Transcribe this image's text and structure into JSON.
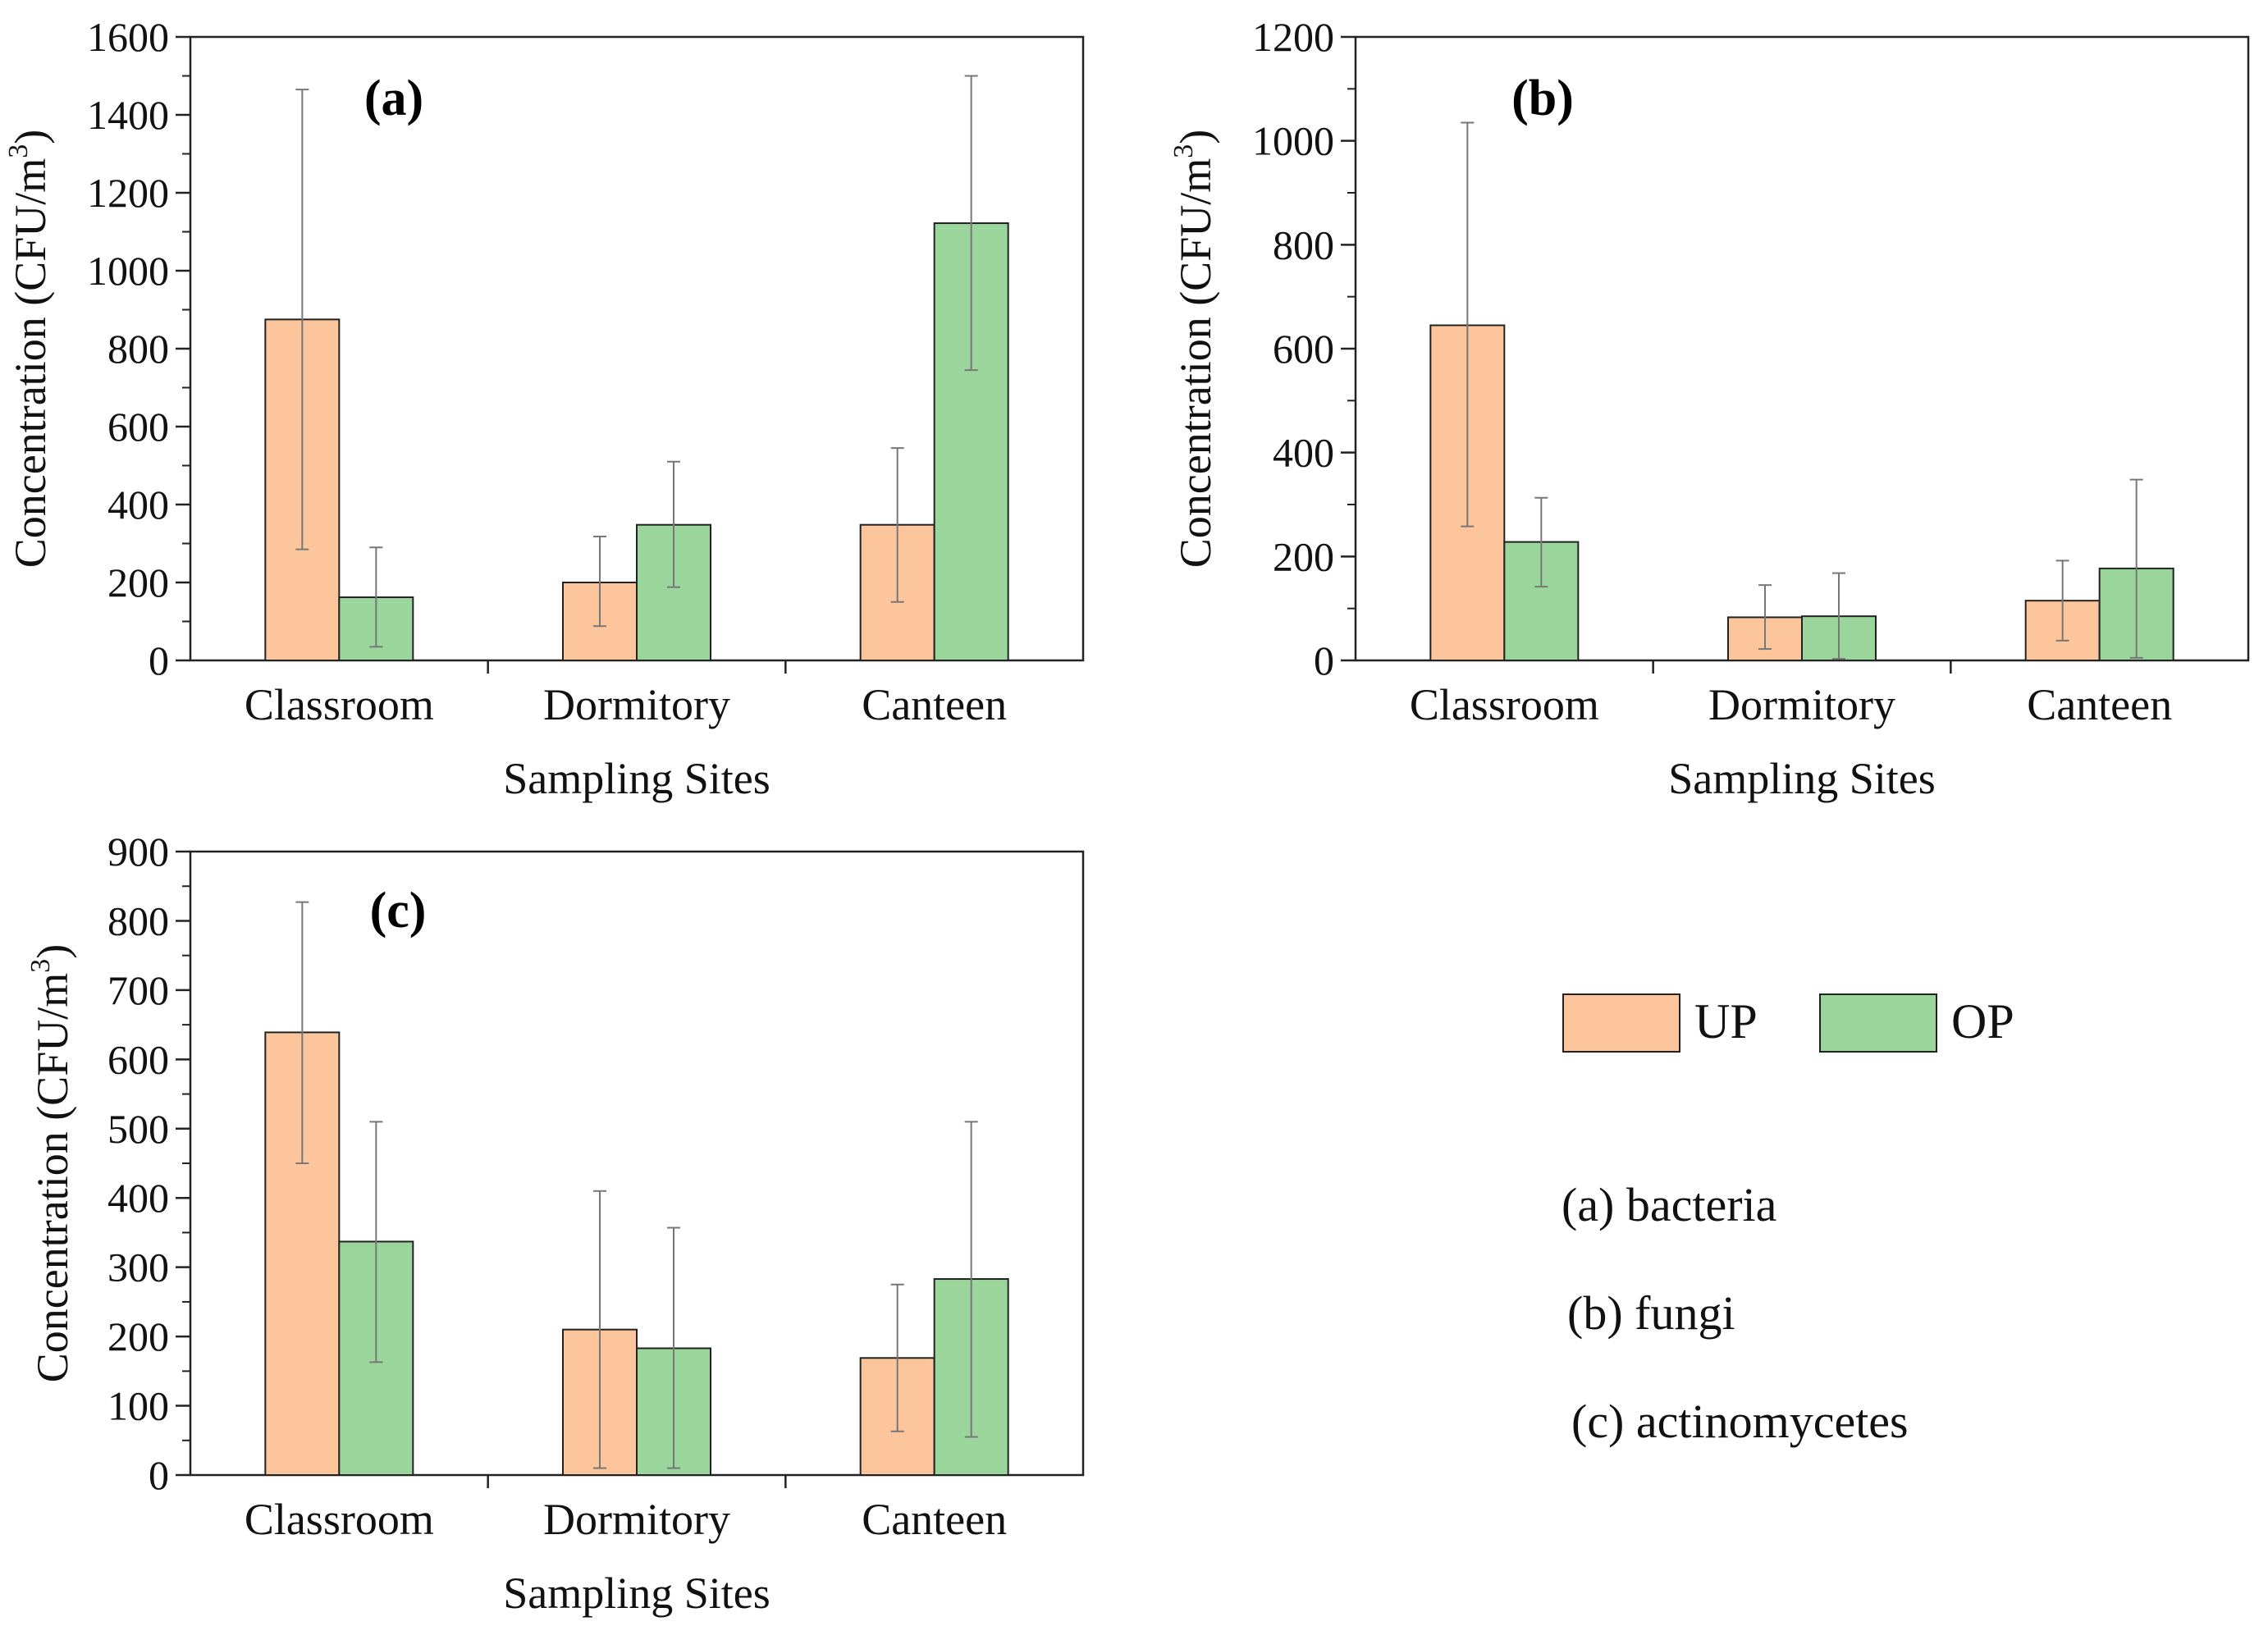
{
  "colors": {
    "UP": "#fcc59b",
    "OP": "#9ad69c",
    "axis": "#222222",
    "error_bar": "#777777"
  },
  "legend": {
    "items": [
      {
        "key": "UP",
        "label": "UP"
      },
      {
        "key": "OP",
        "label": "OP"
      }
    ],
    "notes": [
      "(a) bacteria",
      "(b) fungi",
      "(c) actinomycetes"
    ]
  },
  "chart_data": [
    {
      "type": "bar",
      "panel": "(a)",
      "categories": [
        "Classroom",
        "Dormitory",
        "Canteen"
      ],
      "xlabel": "Sampling Sites",
      "ylabel": "Concentration (CFU/m",
      "ylabel_sup": "3",
      "ylabel_end": ")",
      "ylim": [
        0,
        1600
      ],
      "yticks": [
        0,
        200,
        400,
        600,
        800,
        1000,
        1200,
        1400,
        1600
      ],
      "grid": false,
      "series": [
        {
          "name": "UP",
          "values": [
            875,
            200,
            348
          ],
          "error_low": [
            285,
            88,
            150
          ],
          "error_high": [
            1465,
            318,
            545
          ]
        },
        {
          "name": "OP",
          "values": [
            162,
            348,
            1122
          ],
          "error_low": [
            35,
            188,
            745
          ],
          "error_high": [
            290,
            510,
            1500
          ]
        }
      ]
    },
    {
      "type": "bar",
      "panel": "(b)",
      "categories": [
        "Classroom",
        "Dormitory",
        "Canteen"
      ],
      "xlabel": "Sampling Sites",
      "ylabel": "Concentration (CFU/m",
      "ylabel_sup": "3",
      "ylabel_end": ")",
      "ylim": [
        0,
        1200
      ],
      "yticks": [
        0,
        200,
        400,
        600,
        800,
        1000,
        1200
      ],
      "grid": false,
      "series": [
        {
          "name": "UP",
          "values": [
            645,
            83,
            115
          ],
          "error_low": [
            258,
            22,
            38
          ],
          "error_high": [
            1035,
            145,
            192
          ]
        },
        {
          "name": "OP",
          "values": [
            228,
            85,
            177
          ],
          "error_low": [
            142,
            3,
            5
          ],
          "error_high": [
            313,
            168,
            348
          ]
        }
      ]
    },
    {
      "type": "bar",
      "panel": "(c)",
      "categories": [
        "Classroom",
        "Dormitory",
        "Canteen"
      ],
      "xlabel": "Sampling Sites",
      "ylabel": "Concentration (CFU/m",
      "ylabel_sup": "3",
      "ylabel_end": ")",
      "ylim": [
        0,
        900
      ],
      "yticks": [
        0,
        100,
        200,
        300,
        400,
        500,
        600,
        700,
        800,
        900
      ],
      "grid": false,
      "series": [
        {
          "name": "UP",
          "values": [
            639,
            210,
            169
          ],
          "error_low": [
            450,
            10,
            63
          ],
          "error_high": [
            827,
            410,
            275
          ]
        },
        {
          "name": "OP",
          "values": [
            337,
            183,
            283
          ],
          "error_low": [
            163,
            10,
            55
          ],
          "error_high": [
            510,
            357,
            510
          ]
        }
      ]
    }
  ]
}
